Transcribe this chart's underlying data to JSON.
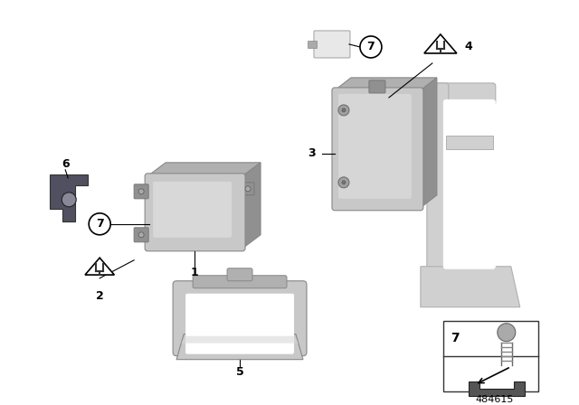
{
  "background_color": "#ffffff",
  "figure_number": "484615",
  "part_color_front": "#c8c8c8",
  "part_color_top": "#b0b0b0",
  "part_color_side": "#909090",
  "part_color_dark": "#787878",
  "ghost_color": "#d0d0d0",
  "ghost_edge": "#b0b0b0",
  "bracket_dark": "#505060",
  "callout_fill": "#ffffff",
  "callout_edge": "#000000",
  "line_color": "#000000",
  "text_color": "#000000",
  "font_size_num": 9,
  "font_size_label": 9,
  "font_size_fig": 7
}
